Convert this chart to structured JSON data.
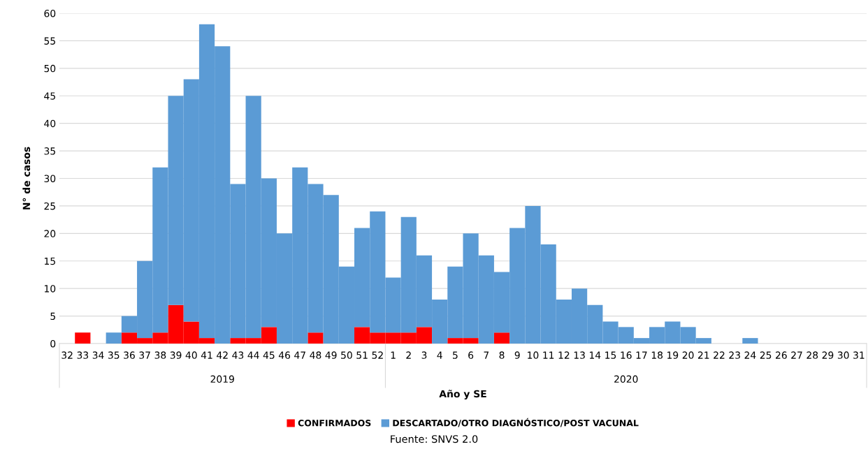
{
  "chart_data": {
    "type": "bar",
    "stacked": true,
    "xlabel": "Año y SE",
    "ylabel": "N° de casos",
    "categories": [
      "32",
      "33",
      "34",
      "35",
      "36",
      "37",
      "38",
      "39",
      "40",
      "41",
      "42",
      "43",
      "44",
      "45",
      "46",
      "47",
      "48",
      "49",
      "50",
      "51",
      "52",
      "1",
      "2",
      "3",
      "4",
      "5",
      "6",
      "7",
      "8",
      "9",
      "10",
      "11",
      "12",
      "13",
      "14",
      "15",
      "16",
      "17",
      "18",
      "19",
      "20",
      "21",
      "22",
      "23",
      "24",
      "25",
      "26",
      "27",
      "28",
      "29",
      "30",
      "31"
    ],
    "series": [
      {
        "name": "CONFIRMADOS",
        "color": "#ff0000",
        "values": [
          0,
          2,
          0,
          0,
          2,
          1,
          2,
          7,
          4,
          1,
          0,
          1,
          1,
          3,
          0,
          0,
          2,
          0,
          0,
          3,
          2,
          2,
          2,
          3,
          0,
          1,
          1,
          0,
          2,
          0,
          0,
          0,
          0,
          0,
          0,
          0,
          0,
          0,
          0,
          0,
          0,
          0,
          0,
          0,
          0,
          0,
          0,
          0,
          0,
          0,
          0,
          0
        ]
      },
      {
        "name": "DESCARTADO/OTRO DIAGNÓSTICO/POST VACUNAL",
        "color": "#5b9bd5",
        "values": [
          0,
          0,
          0,
          2,
          3,
          14,
          30,
          38,
          44,
          57,
          54,
          28,
          44,
          27,
          20,
          32,
          27,
          27,
          14,
          18,
          22,
          10,
          21,
          13,
          8,
          13,
          19,
          16,
          11,
          21,
          25,
          18,
          8,
          10,
          7,
          4,
          3,
          1,
          3,
          4,
          3,
          1,
          0,
          0,
          1,
          0,
          0,
          0,
          0,
          0,
          0,
          0
        ]
      }
    ],
    "ylim": [
      0,
      60
    ],
    "yticks": [
      0,
      5,
      10,
      15,
      20,
      25,
      30,
      35,
      40,
      45,
      50,
      55,
      60
    ],
    "grid": "y",
    "legend": "bottom",
    "annotations": [
      "2019",
      "2020",
      "Fuente: SNVS 2.0"
    ]
  }
}
